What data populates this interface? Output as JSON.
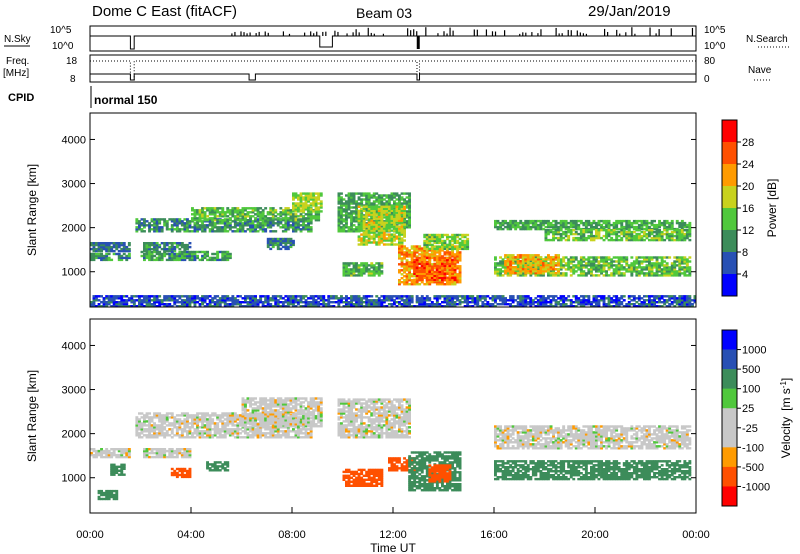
{
  "header": {
    "station": "Dome C East (fitACF)",
    "beam": "Beam 03",
    "date": "29/Jan/2019"
  },
  "status_panels": {
    "nsky_label": "N.Sky",
    "nsky_ticks": [
      "10^5",
      "10^0"
    ],
    "nsearch_label": "N.Search",
    "nsearch_ticks": [
      "10^5",
      "10^0"
    ],
    "freq_label": "Freq.",
    "freq_unit": "[MHz]",
    "freq_ticks": [
      "18",
      "8"
    ],
    "nave_label": "Nave",
    "nave_ticks": [
      "80",
      "0"
    ],
    "cpid_label": "CPID",
    "cpid_value": "normal 150"
  },
  "colors": {
    "power_scale": [
      "#0000ff",
      "#2850b4",
      "#3c8c5a",
      "#50c83c",
      "#c8d21e",
      "#ff9b00",
      "#ff5000",
      "#ff0000"
    ],
    "velocity_scale": [
      "#ff0000",
      "#ff5000",
      "#ff9b00",
      "#c8c8c8",
      "#c8c8c8",
      "#50c83c",
      "#3c8c5a",
      "#2850b4",
      "#0000ff"
    ]
  },
  "chart_data": [
    {
      "type": "heatmap",
      "name": "power",
      "ylabel": "Slant Range [km]",
      "yticks": [
        "1000",
        "2000",
        "3000",
        "4000"
      ],
      "ylim": [
        200,
        4600
      ],
      "xlim": [
        0,
        24
      ],
      "colorbar_label": "Power [dB]",
      "colorbar_ticks": [
        "4",
        "8",
        "12",
        "16",
        "20",
        "24",
        "28"
      ],
      "colorbar_range": [
        0,
        32
      ],
      "echo_bands": [
        {
          "x": [
            0.0,
            1.6
          ],
          "y": [
            1450,
            1650
          ],
          "value": 8
        },
        {
          "x": [
            0.0,
            1.6
          ],
          "y": [
            1250,
            1400
          ],
          "value": 10
        },
        {
          "x": [
            2.1,
            4.0
          ],
          "y": [
            1450,
            1650
          ],
          "value": 9
        },
        {
          "x": [
            2.0,
            5.5
          ],
          "y": [
            1250,
            1450
          ],
          "value": 11
        },
        {
          "x": [
            1.8,
            8.7
          ],
          "y": [
            1900,
            2200
          ],
          "value": 10
        },
        {
          "x": [
            4.0,
            9.0
          ],
          "y": [
            2150,
            2450
          ],
          "value": 13
        },
        {
          "x": [
            8.0,
            9.1
          ],
          "y": [
            2350,
            2800
          ],
          "value": 16
        },
        {
          "x": [
            7.0,
            8.0
          ],
          "y": [
            1500,
            1750
          ],
          "value": 9
        },
        {
          "x": [
            9.8,
            12.6
          ],
          "y": [
            1900,
            2800
          ],
          "value": 12
        },
        {
          "x": [
            10.6,
            12.4
          ],
          "y": [
            1600,
            2500
          ],
          "value": 17
        },
        {
          "x": [
            10.0,
            11.5
          ],
          "y": [
            900,
            1200
          ],
          "value": 13
        },
        {
          "x": [
            12.2,
            14.6
          ],
          "y": [
            700,
            1600
          ],
          "value": 22
        },
        {
          "x": [
            12.8,
            14.4
          ],
          "y": [
            800,
            1300
          ],
          "value": 26
        },
        {
          "x": [
            13.2,
            14.9
          ],
          "y": [
            1500,
            1850
          ],
          "value": 15
        },
        {
          "x": [
            16.0,
            23.8
          ],
          "y": [
            1950,
            2150
          ],
          "value": 12
        },
        {
          "x": [
            18.0,
            23.8
          ],
          "y": [
            1700,
            1950
          ],
          "value": 14
        },
        {
          "x": [
            16.0,
            23.8
          ],
          "y": [
            900,
            1350
          ],
          "value": 14
        },
        {
          "x": [
            16.4,
            18.6
          ],
          "y": [
            950,
            1400
          ],
          "value": 21
        },
        {
          "x": [
            0.0,
            24.0
          ],
          "y": [
            200,
            450
          ],
          "value": 6
        }
      ]
    },
    {
      "type": "heatmap",
      "name": "velocity",
      "ylabel": "Slant Range [km]",
      "yticks": [
        "1000",
        "2000",
        "3000",
        "4000"
      ],
      "ylim": [
        200,
        4600
      ],
      "xlabel": "Time UT",
      "xticks": [
        "00:00",
        "04:00",
        "08:00",
        "12:00",
        "16:00",
        "20:00",
        "00:00"
      ],
      "xlim": [
        0,
        24
      ],
      "colorbar_label": "Velocity",
      "colorbar_unit": "[m s",
      "colorbar_unit_exp": "-1",
      "colorbar_unit_close": "]",
      "colorbar_ticks": [
        "1000",
        "500",
        "100",
        "25",
        "-25",
        "-100",
        "-500",
        "-1000"
      ],
      "echo_bands": [
        {
          "x": [
            0.0,
            1.6
          ],
          "y": [
            1450,
            1650
          ],
          "value": 0
        },
        {
          "x": [
            2.1,
            4.0
          ],
          "y": [
            1450,
            1650
          ],
          "value": 0
        },
        {
          "x": [
            1.8,
            8.7
          ],
          "y": [
            1900,
            2450
          ],
          "value": 0
        },
        {
          "x": [
            6.0,
            9.1
          ],
          "y": [
            2150,
            2800
          ],
          "value": 0
        },
        {
          "x": [
            9.8,
            12.6
          ],
          "y": [
            1900,
            2800
          ],
          "value": 0
        },
        {
          "x": [
            16.0,
            23.8
          ],
          "y": [
            1650,
            2150
          ],
          "value": 0
        },
        {
          "x": [
            0.8,
            1.4
          ],
          "y": [
            1050,
            1300
          ],
          "value": 150
        },
        {
          "x": [
            0.3,
            1.0
          ],
          "y": [
            500,
            700
          ],
          "value": 150
        },
        {
          "x": [
            3.2,
            4.0
          ],
          "y": [
            1000,
            1200
          ],
          "value": -150
        },
        {
          "x": [
            4.6,
            5.4
          ],
          "y": [
            1150,
            1350
          ],
          "value": 300
        },
        {
          "x": [
            10.0,
            11.5
          ],
          "y": [
            800,
            1200
          ],
          "value": -150
        },
        {
          "x": [
            11.8,
            12.8
          ],
          "y": [
            1150,
            1450
          ],
          "value": -150
        },
        {
          "x": [
            12.6,
            14.6
          ],
          "y": [
            700,
            1600
          ],
          "value": 300
        },
        {
          "x": [
            13.4,
            14.2
          ],
          "y": [
            900,
            1300
          ],
          "value": -200
        },
        {
          "x": [
            16.0,
            23.8
          ],
          "y": [
            950,
            1400
          ],
          "value": 300
        }
      ]
    }
  ]
}
